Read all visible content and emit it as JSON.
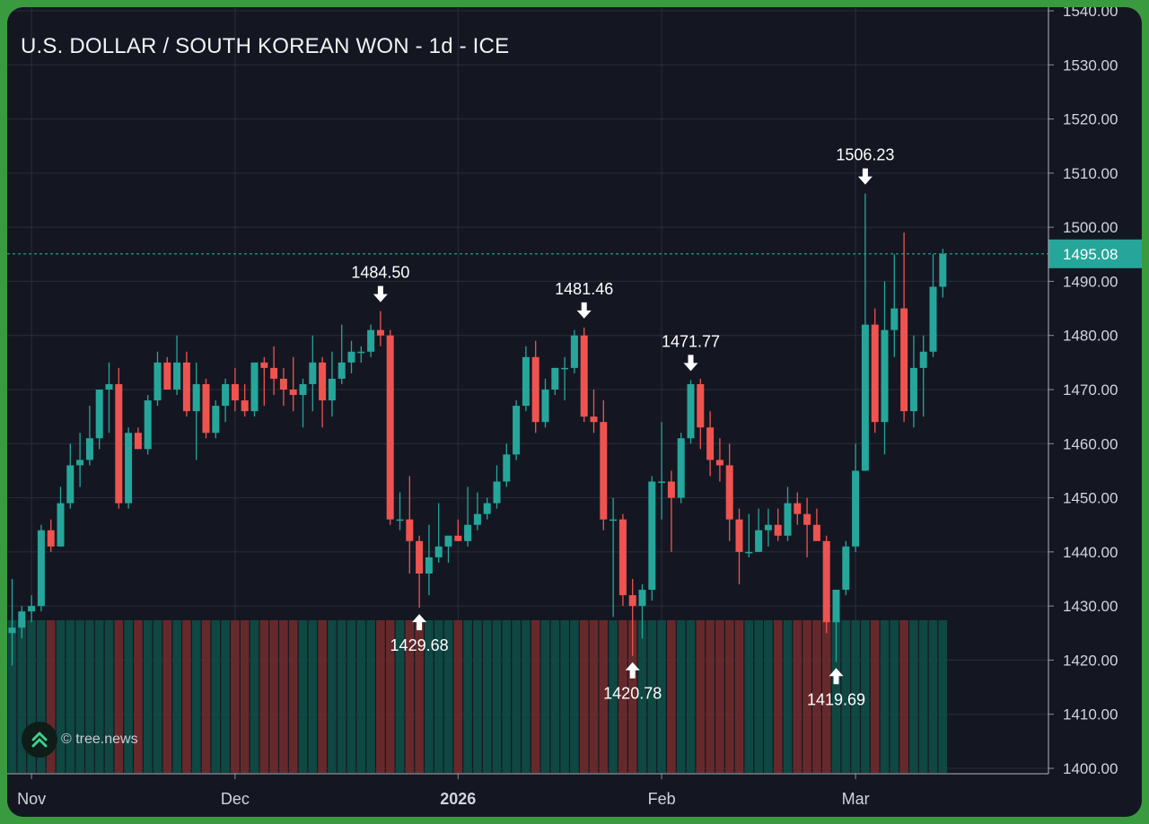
{
  "chart_data": {
    "type": "candlestick",
    "title": "U.S. DOLLAR / SOUTH KOREAN WON - 1d - ICE",
    "y_ticks": [
      "1400.00",
      "1410.00",
      "1420.00",
      "1430.00",
      "1440.00",
      "1450.00",
      "1460.00",
      "1470.00",
      "1480.00",
      "1490.00",
      "1500.00",
      "1510.00",
      "1520.00",
      "1530.00",
      "1540.00"
    ],
    "ylim": [
      1400,
      1540
    ],
    "x_ticks": [
      {
        "label": "Nov",
        "index": 2
      },
      {
        "label": "Dec",
        "index": 23
      },
      {
        "label": "2026",
        "index": 46,
        "bold": true
      },
      {
        "label": "Feb",
        "index": 67
      },
      {
        "label": "Mar",
        "index": 87
      }
    ],
    "last_price": {
      "value": 1495.08,
      "label": "1495.08",
      "color": "#26a69a"
    },
    "annotations": [
      {
        "label": "1484.50",
        "index": 38,
        "value": 1484.5,
        "dir": "high"
      },
      {
        "label": "1429.68",
        "index": 42,
        "value": 1429.68,
        "dir": "low"
      },
      {
        "label": "1481.46",
        "index": 59,
        "value": 1481.46,
        "dir": "high"
      },
      {
        "label": "1420.78",
        "index": 64,
        "value": 1420.78,
        "dir": "low"
      },
      {
        "label": "1471.77",
        "index": 70,
        "value": 1471.77,
        "dir": "high"
      },
      {
        "label": "1506.23",
        "index": 88,
        "value": 1506.23,
        "dir": "high"
      },
      {
        "label": "1419.69",
        "index": 85,
        "value": 1419.69,
        "dir": "low"
      }
    ],
    "candles": [
      [
        1425,
        1435,
        1419,
        1426
      ],
      [
        1426,
        1430,
        1424,
        1429
      ],
      [
        1429,
        1432,
        1427,
        1430
      ],
      [
        1430,
        1445,
        1429,
        1444
      ],
      [
        1444,
        1446,
        1440,
        1441
      ],
      [
        1441,
        1452,
        1441,
        1449
      ],
      [
        1449,
        1460,
        1448,
        1456
      ],
      [
        1456,
        1462,
        1452,
        1457
      ],
      [
        1457,
        1467,
        1456,
        1461
      ],
      [
        1461,
        1470,
        1459,
        1470
      ],
      [
        1470,
        1475,
        1462,
        1471
      ],
      [
        1471,
        1474,
        1448,
        1449
      ],
      [
        1449,
        1463,
        1448,
        1462
      ],
      [
        1462,
        1463,
        1459,
        1459
      ],
      [
        1459,
        1469,
        1458,
        1468
      ],
      [
        1468,
        1477,
        1467,
        1475
      ],
      [
        1475,
        1476,
        1470,
        1470
      ],
      [
        1470,
        1480,
        1469,
        1475
      ],
      [
        1475,
        1477,
        1465,
        1466
      ],
      [
        1466,
        1475,
        1457,
        1471
      ],
      [
        1471,
        1472,
        1461,
        1462
      ],
      [
        1462,
        1468,
        1461,
        1467
      ],
      [
        1467,
        1472,
        1464,
        1471
      ],
      [
        1471,
        1474,
        1466,
        1468
      ],
      [
        1468,
        1471,
        1465,
        1466
      ],
      [
        1466,
        1475,
        1465,
        1475
      ],
      [
        1475,
        1476,
        1467,
        1474
      ],
      [
        1474,
        1478,
        1469,
        1472
      ],
      [
        1472,
        1474,
        1467,
        1470
      ],
      [
        1470,
        1476,
        1466,
        1469
      ],
      [
        1469,
        1472,
        1463,
        1471
      ],
      [
        1471,
        1480,
        1466,
        1475
      ],
      [
        1475,
        1476,
        1463,
        1468
      ],
      [
        1468,
        1477,
        1465,
        1472
      ],
      [
        1472,
        1482,
        1471,
        1475
      ],
      [
        1475,
        1479,
        1473,
        1477
      ],
      [
        1477,
        1478,
        1475,
        1477
      ],
      [
        1477,
        1482,
        1476,
        1481
      ],
      [
        1481,
        1484.5,
        1478,
        1480
      ],
      [
        1480,
        1481,
        1445,
        1446
      ],
      [
        1446,
        1451,
        1444,
        1446
      ],
      [
        1446,
        1454,
        1436,
        1442
      ],
      [
        1442,
        1443,
        1429.68,
        1436
      ],
      [
        1436,
        1445,
        1432,
        1439
      ],
      [
        1439,
        1449,
        1438,
        1441
      ],
      [
        1441,
        1443,
        1438,
        1443
      ],
      [
        1443,
        1446,
        1442,
        1442
      ],
      [
        1442,
        1452,
        1441,
        1445
      ],
      [
        1445,
        1451,
        1444,
        1447
      ],
      [
        1447,
        1450,
        1446,
        1449
      ],
      [
        1449,
        1456,
        1448,
        1453
      ],
      [
        1453,
        1460,
        1452,
        1458
      ],
      [
        1458,
        1468,
        1457,
        1467
      ],
      [
        1467,
        1478,
        1466,
        1476
      ],
      [
        1476,
        1479,
        1462,
        1464
      ],
      [
        1464,
        1472,
        1463,
        1470
      ],
      [
        1470,
        1474,
        1469,
        1474
      ],
      [
        1474,
        1476,
        1468,
        1474
      ],
      [
        1474,
        1481,
        1473,
        1480
      ],
      [
        1480,
        1481.46,
        1464,
        1465
      ],
      [
        1465,
        1470,
        1462,
        1464
      ],
      [
        1464,
        1468,
        1444,
        1446
      ],
      [
        1446,
        1450,
        1428,
        1446
      ],
      [
        1446,
        1447,
        1430,
        1432
      ],
      [
        1432,
        1435,
        1420.78,
        1430
      ],
      [
        1430,
        1434,
        1424,
        1433
      ],
      [
        1433,
        1454,
        1431,
        1453
      ],
      [
        1453,
        1464,
        1446,
        1453
      ],
      [
        1453,
        1455,
        1440,
        1450
      ],
      [
        1450,
        1462,
        1449,
        1461
      ],
      [
        1461,
        1471.77,
        1460,
        1471
      ],
      [
        1471,
        1472,
        1459,
        1463
      ],
      [
        1463,
        1466,
        1454,
        1457
      ],
      [
        1457,
        1461,
        1453,
        1456
      ],
      [
        1456,
        1460,
        1442,
        1446
      ],
      [
        1446,
        1448,
        1434,
        1440
      ],
      [
        1440,
        1447,
        1439,
        1440
      ],
      [
        1440,
        1448,
        1440,
        1444
      ],
      [
        1444,
        1448,
        1441,
        1445
      ],
      [
        1445,
        1448,
        1442,
        1443
      ],
      [
        1443,
        1452,
        1442,
        1449
      ],
      [
        1449,
        1451,
        1445,
        1447
      ],
      [
        1447,
        1450,
        1439,
        1445
      ],
      [
        1445,
        1448,
        1442,
        1442
      ],
      [
        1442,
        1443,
        1425,
        1427
      ],
      [
        1427,
        1433,
        1419.69,
        1433
      ],
      [
        1433,
        1442,
        1432,
        1441
      ],
      [
        1441,
        1460,
        1440,
        1455
      ],
      [
        1455,
        1506.23,
        1455,
        1482
      ],
      [
        1482,
        1485,
        1462,
        1464
      ],
      [
        1464,
        1490,
        1458,
        1481
      ],
      [
        1481,
        1495,
        1476,
        1485
      ],
      [
        1485,
        1499,
        1464,
        1466
      ],
      [
        1466,
        1480,
        1463,
        1474
      ],
      [
        1474,
        1480,
        1465,
        1477
      ],
      [
        1477,
        1495,
        1476,
        1489
      ],
      [
        1489,
        1496,
        1487,
        1495.08
      ]
    ]
  },
  "watermark": {
    "text": "© tree.news",
    "icon": "double-chevron-up-icon"
  },
  "colors": {
    "up": "#26a69a",
    "down": "#ef5350",
    "background": "#141722",
    "grid": "#2a2e39"
  }
}
